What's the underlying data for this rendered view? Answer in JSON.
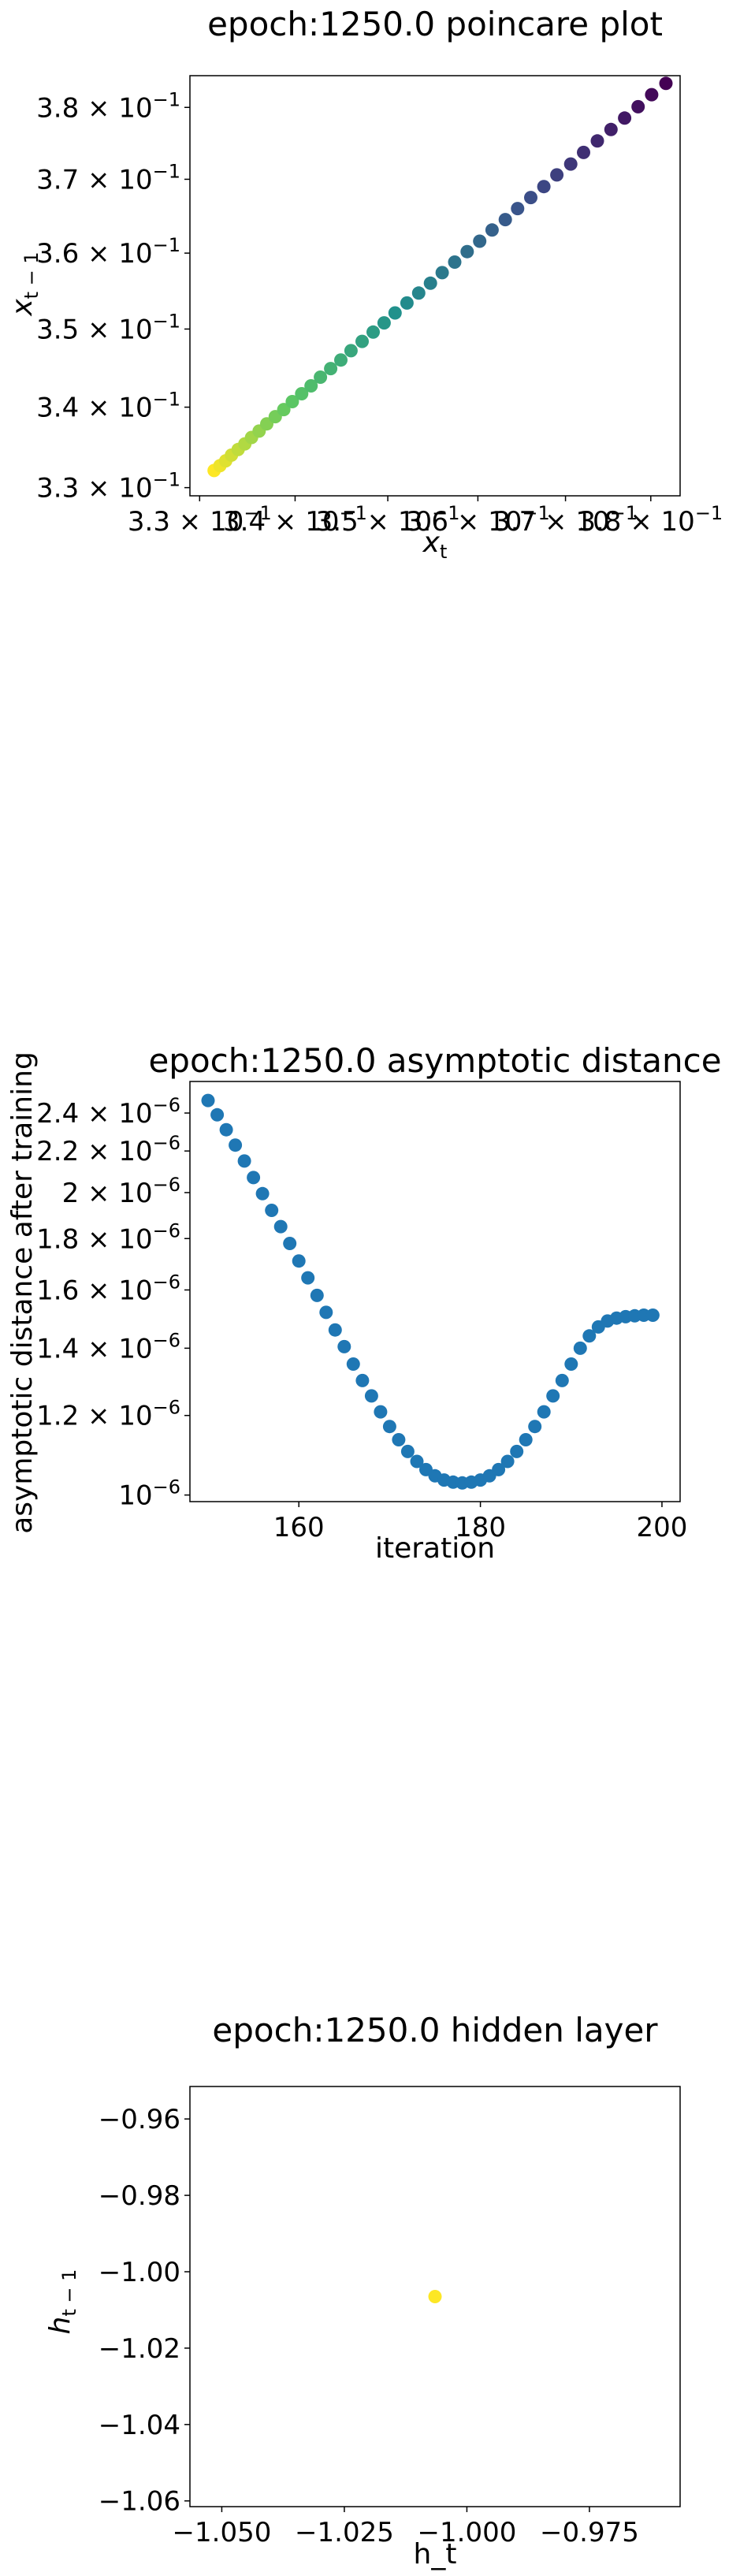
{
  "chart_data": [
    {
      "type": "scatter",
      "title": "epoch:1250.0 poincare plot",
      "xlabel": "x_t",
      "ylabel": "x_{t-1}",
      "log_scale": true,
      "xlim": [
        0.329,
        0.3835
      ],
      "ylim": [
        0.329,
        0.3845
      ],
      "xticks": [
        {
          "mant": "3.3",
          "value": 0.33
        },
        {
          "mant": "3.4",
          "value": 0.34
        },
        {
          "mant": "3.5",
          "value": 0.35
        },
        {
          "mant": "3.6",
          "value": 0.36
        },
        {
          "mant": "3.7",
          "value": 0.37
        },
        {
          "mant": "3.8",
          "value": 0.38
        }
      ],
      "yticks": [
        {
          "mant": "3.3",
          "value": 0.33
        },
        {
          "mant": "3.4",
          "value": 0.34
        },
        {
          "mant": "3.5",
          "value": 0.35
        },
        {
          "mant": "3.6",
          "value": 0.36
        },
        {
          "mant": "3.7",
          "value": 0.37
        },
        {
          "mant": "3.8",
          "value": 0.38
        }
      ],
      "tick_exponent": "−1",
      "colormap": "viridis (reversed along series: early points yellow, late points purple)",
      "x": [
        0.3315,
        0.3321,
        0.3327,
        0.3333,
        0.334,
        0.3347,
        0.3354,
        0.3362,
        0.337,
        0.3379,
        0.3388,
        0.3397,
        0.3407,
        0.3417,
        0.3427,
        0.3438,
        0.3449,
        0.346,
        0.3472,
        0.3484,
        0.3496,
        0.3508,
        0.3521,
        0.3534,
        0.3547,
        0.356,
        0.3574,
        0.3588,
        0.3602,
        0.3616,
        0.3631,
        0.3645,
        0.366,
        0.3675,
        0.369,
        0.3706,
        0.3721,
        0.3737,
        0.3753,
        0.3769,
        0.3785,
        0.3801,
        0.3818
      ],
      "y": [
        0.3321,
        0.3327,
        0.3333,
        0.334,
        0.3347,
        0.3354,
        0.3362,
        0.337,
        0.3379,
        0.3388,
        0.3397,
        0.3407,
        0.3417,
        0.3427,
        0.3438,
        0.3449,
        0.346,
        0.3472,
        0.3484,
        0.3496,
        0.3508,
        0.3521,
        0.3534,
        0.3547,
        0.356,
        0.3574,
        0.3588,
        0.3602,
        0.3616,
        0.3631,
        0.3645,
        0.366,
        0.3675,
        0.369,
        0.3706,
        0.3721,
        0.3737,
        0.3753,
        0.3769,
        0.3785,
        0.3801,
        0.3818,
        0.3834
      ]
    },
    {
      "type": "scatter",
      "title": "epoch:1250.0 asymptotic distance",
      "xlabel": "iteration",
      "ylabel": "asymptotic distance after training",
      "log_scale_y": true,
      "xlim": [
        148,
        202
      ],
      "ylim": [
        9.85e-07,
        2.58e-06
      ],
      "xticks": [
        160,
        180,
        200
      ],
      "yticks": [
        {
          "mant": "10",
          "exp": "−6",
          "value": 1e-06,
          "plain": true
        },
        {
          "mant": "1.2 × 10",
          "exp": "−6",
          "value": 1.2e-06
        },
        {
          "mant": "1.4 × 10",
          "exp": "−6",
          "value": 1.4e-06
        },
        {
          "mant": "1.6 × 10",
          "exp": "−6",
          "value": 1.6e-06
        },
        {
          "mant": "1.8 × 10",
          "exp": "−6",
          "value": 1.8e-06
        },
        {
          "mant": "2 × 10",
          "exp": "−6",
          "value": 2e-06
        },
        {
          "mant": "2.2 × 10",
          "exp": "−6",
          "value": 2.2e-06
        },
        {
          "mant": "2.4 × 10",
          "exp": "−6",
          "value": 2.4e-06
        }
      ],
      "color": "#1f77b4",
      "x": [
        150,
        151,
        152,
        153,
        154,
        155,
        156,
        157,
        158,
        159,
        160,
        161,
        162,
        163,
        164,
        165,
        166,
        167,
        168,
        169,
        170,
        171,
        172,
        173,
        174,
        175,
        176,
        177,
        178,
        179,
        180,
        181,
        182,
        183,
        184,
        185,
        186,
        187,
        188,
        189,
        190,
        191,
        192,
        193,
        194,
        195,
        196,
        197,
        198,
        199
      ],
      "y": [
        2.47e-06,
        2.39e-06,
        2.31e-06,
        2.23e-06,
        2.15e-06,
        2.07e-06,
        1.995e-06,
        1.92e-06,
        1.85e-06,
        1.78e-06,
        1.71e-06,
        1.645e-06,
        1.58e-06,
        1.52e-06,
        1.46e-06,
        1.405e-06,
        1.35e-06,
        1.3e-06,
        1.255e-06,
        1.21e-06,
        1.17e-06,
        1.135e-06,
        1.105e-06,
        1.08e-06,
        1.06e-06,
        1.045e-06,
        1.035e-06,
        1.03e-06,
        1.028e-06,
        1.03e-06,
        1.035e-06,
        1.045e-06,
        1.06e-06,
        1.08e-06,
        1.105e-06,
        1.135e-06,
        1.17e-06,
        1.21e-06,
        1.255e-06,
        1.3e-06,
        1.35e-06,
        1.4e-06,
        1.44e-06,
        1.47e-06,
        1.49e-06,
        1.5e-06,
        1.505e-06,
        1.508e-06,
        1.51e-06,
        1.51e-06
      ]
    },
    {
      "type": "scatter",
      "title": "epoch:1250.0 hidden layer",
      "xlabel": "h_t",
      "ylabel": "h_{t-1}",
      "xlim": [
        -1.0565,
        -0.9565
      ],
      "ylim": [
        -1.0615,
        -0.9515
      ],
      "xticks": [
        {
          "label": "−1.050",
          "value": -1.05
        },
        {
          "label": "−1.025",
          "value": -1.025
        },
        {
          "label": "−1.000",
          "value": -1.0
        },
        {
          "label": "−0.975",
          "value": -0.975
        }
      ],
      "yticks": [
        {
          "label": "−1.06",
          "value": -1.06
        },
        {
          "label": "−1.04",
          "value": -1.04
        },
        {
          "label": "−1.02",
          "value": -1.02
        },
        {
          "label": "−1.00",
          "value": -1.0
        },
        {
          "label": "−0.98",
          "value": -0.98
        },
        {
          "label": "−0.96",
          "value": -0.96
        }
      ],
      "color": "#fde725",
      "x": [
        -1.0065
      ],
      "y": [
        -1.0065
      ]
    }
  ]
}
